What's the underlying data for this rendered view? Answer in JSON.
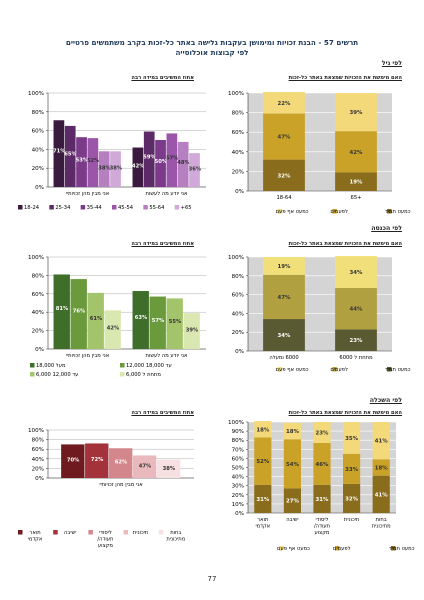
{
  "page": {
    "title_line1": "תרשים 57 - הבנת זכויות ומימושן בעקבות גלישה באתר כל-זכות בקרב משתמשים פרטיים",
    "title_line2": "לפי קבוצות אוכלוסייה",
    "page_number": "77"
  },
  "sections": {
    "age": "לפי גיל",
    "income": "לפי הכנסה",
    "education": "לפי השכלה"
  },
  "chart_titles": {
    "stacked": "האם מימשת את הזכויות שמצאת באתר כל-זכות",
    "bars": "אחוז המשיבים במידה רבה"
  },
  "chart_data": [
    {
      "type": "bar",
      "stacked": true,
      "group": "age",
      "categories": [
        "+65",
        "18-64"
      ],
      "series": [
        {
          "name": "כמעט תמיד",
          "values": [
            19,
            32
          ],
          "color": "#8a6d1c"
        },
        {
          "name": "לפעמים",
          "values": [
            42,
            47
          ],
          "color": "#c9a227"
        },
        {
          "name": "כמעט אף פעם",
          "values": [
            39,
            22
          ],
          "color": "#f3d97a"
        }
      ],
      "ylim": [
        0,
        100
      ],
      "ytick_labels": [
        "0%",
        "20%",
        "40%",
        "60%",
        "80%",
        "100%"
      ]
    },
    {
      "type": "bar",
      "group": "age",
      "categories": [
        "אני מבין מהן זכויותיי",
        "אני יודע מה לעשות"
      ],
      "series": [
        {
          "name": "18-24",
          "values": [
            71,
            42
          ],
          "color": "#3a1a3e"
        },
        {
          "name": "25-34",
          "values": [
            65,
            59
          ],
          "color": "#5c2a66"
        },
        {
          "name": "35-44",
          "values": [
            53,
            50
          ],
          "color": "#7c3a8a"
        },
        {
          "name": "45-54",
          "values": [
            52,
            57
          ],
          "color": "#9b55a9"
        },
        {
          "name": "55-64",
          "values": [
            38,
            48
          ],
          "color": "#b57fc0"
        },
        {
          "name": "+65",
          "values": [
            38,
            36
          ],
          "color": "#d0a9d8"
        }
      ],
      "ylim": [
        0,
        100
      ],
      "ytick_labels": [
        "0%",
        "20%",
        "40%",
        "60%",
        "80%",
        "100%"
      ]
    },
    {
      "type": "bar",
      "stacked": true,
      "group": "income",
      "categories": [
        "מתחת ל 6000",
        "6000 ומעלה"
      ],
      "series": [
        {
          "name": "כמעט תמיד",
          "values": [
            23,
            34
          ],
          "color": "#5a5a32"
        },
        {
          "name": "לפעמים",
          "values": [
            44,
            47
          ],
          "color": "#b0a040"
        },
        {
          "name": "כמעט אף פעם",
          "values": [
            34,
            19
          ],
          "color": "#f1e079"
        }
      ],
      "ylim": [
        0,
        100
      ],
      "ytick_labels": [
        "0%",
        "20%",
        "40%",
        "60%",
        "80%",
        "100%"
      ]
    },
    {
      "type": "bar",
      "group": "income",
      "categories": [
        "אני מבין מהן זכויותיי",
        "אני יודע מה לעשות"
      ],
      "series": [
        {
          "name": "מעל 18,000",
          "values": [
            81,
            63
          ],
          "color": "#3f6e2a"
        },
        {
          "name": "12,000 עד 18,000",
          "values": [
            76,
            57
          ],
          "color": "#6b9a3c"
        },
        {
          "name": "6,000 עד 12,000",
          "values": [
            61,
            55
          ],
          "color": "#a3c46a"
        },
        {
          "name": "מתחת ל 6,000",
          "values": [
            42,
            39
          ],
          "color": "#d9e8b0"
        }
      ],
      "ylim": [
        0,
        100
      ],
      "ytick_labels": [
        "0%",
        "20%",
        "40%",
        "60%",
        "80%",
        "100%"
      ]
    },
    {
      "type": "bar",
      "stacked": true,
      "group": "education",
      "categories": [
        "בחות מתיכונית",
        "תיכונית",
        "ליסודי תעודה/ מקצוע",
        "ישיבה",
        "תואר אקדמי"
      ],
      "series": [
        {
          "name": "כמעט תמיד",
          "values": [
            41,
            32,
            31,
            27,
            31
          ],
          "color": "#8a6d1c"
        },
        {
          "name": "לפעמים",
          "values": [
            18,
            33,
            46,
            54,
            52
          ],
          "color": "#c9a227"
        },
        {
          "name": "כמעט אף פעם",
          "values": [
            41,
            35,
            23,
            18,
            18
          ],
          "color": "#f3d97a"
        }
      ],
      "ylim": [
        0,
        100
      ],
      "ytick_labels": [
        "0%",
        "10%",
        "20%",
        "30%",
        "40%",
        "50%",
        "60%",
        "70%",
        "80%",
        "90%",
        "100%"
      ]
    },
    {
      "type": "bar",
      "group": "education",
      "categories": [
        "אני מבין מהן זכויותיי"
      ],
      "series": [
        {
          "name": "תואר אקדמי",
          "values": [
            70
          ],
          "color": "#6e1a1e"
        },
        {
          "name": "ישיבה",
          "values": [
            72
          ],
          "color": "#a3323a"
        },
        {
          "name": "ליסודי תעודה/ מקצוע",
          "values": [
            62
          ],
          "color": "#d4868d"
        },
        {
          "name": "תיכונית",
          "values": [
            47
          ],
          "color": "#eab9bd"
        },
        {
          "name": "בחות מתיכונית",
          "values": [
            38
          ],
          "color": "#f7e0e2"
        }
      ],
      "ylim": [
        0,
        100
      ],
      "ytick_labels": [
        "0%",
        "20%",
        "40%",
        "60%",
        "80%",
        "100%"
      ]
    }
  ]
}
